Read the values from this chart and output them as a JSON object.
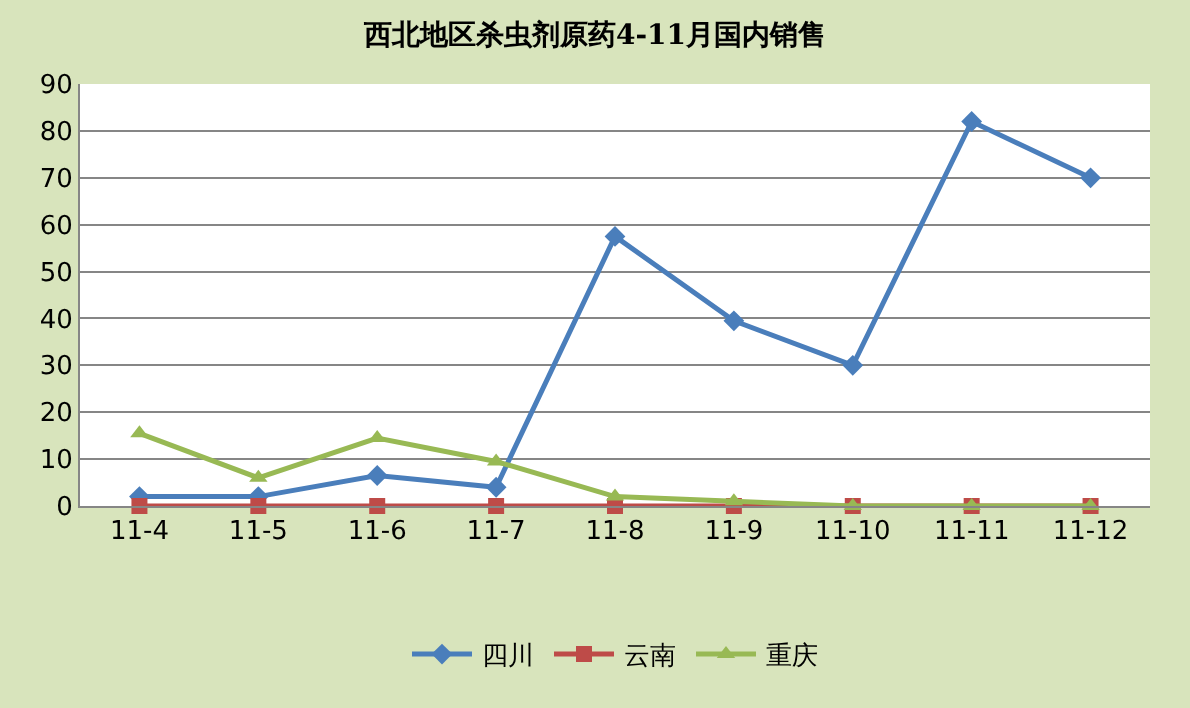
{
  "chart_data": {
    "type": "line",
    "title": "西北地区杀虫剂原药4-11月国内销售",
    "categories": [
      "11-4",
      "11-5",
      "11-6",
      "11-7",
      "11-8",
      "11-9",
      "11-10",
      "11-11",
      "11-12"
    ],
    "series": [
      {
        "name": "四川",
        "color": "#4a7ebb",
        "marker": "diamond",
        "values": [
          2,
          2,
          6.5,
          4,
          57.5,
          39.5,
          30,
          82,
          70
        ]
      },
      {
        "name": "云南",
        "color": "#be4b48",
        "marker": "square",
        "values": [
          0,
          0,
          0,
          0,
          0,
          0,
          0,
          0,
          0
        ]
      },
      {
        "name": "重庆",
        "color": "#98b954",
        "marker": "triangle",
        "values": [
          15.5,
          6,
          14.5,
          9.5,
          2,
          1,
          0,
          0,
          0
        ]
      }
    ],
    "ylim": [
      0,
      90
    ],
    "yticks": [
      0,
      10,
      20,
      30,
      40,
      50,
      60,
      70,
      80,
      90
    ],
    "grid": "y",
    "legend": "bottom",
    "line_style": "solid"
  }
}
